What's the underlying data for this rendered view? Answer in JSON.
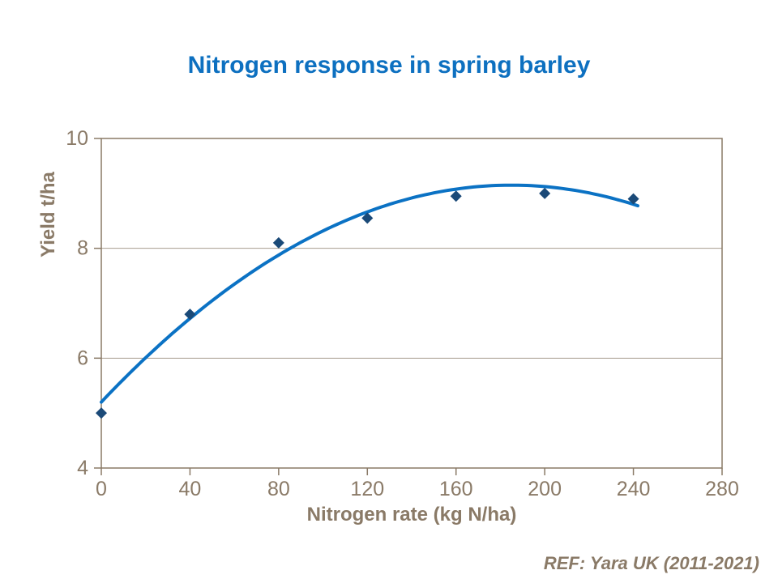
{
  "title": {
    "text": "Nitrogen response in spring barley"
  },
  "footer": {
    "ref_text": "REF: Yara UK (2011-2021)"
  },
  "chart_data": {
    "type": "scatter",
    "title": "Nitrogen response in spring barley",
    "xlabel": "Nitrogen rate (kg N/ha)",
    "ylabel": "Yield t/ha",
    "xlim": [
      0,
      280
    ],
    "ylim": [
      4,
      10
    ],
    "x_ticks": [
      0,
      40,
      80,
      120,
      160,
      200,
      240,
      280
    ],
    "y_ticks": [
      4,
      6,
      8,
      10
    ],
    "grid": "horizontal gridlines at interior y ticks; full plot-area frame",
    "legend": "none",
    "points": {
      "x": [
        0,
        40,
        80,
        120,
        160,
        200,
        240
      ],
      "y": [
        5.0,
        6.8,
        8.1,
        8.55,
        8.95,
        9.0,
        8.9
      ]
    },
    "trendline": {
      "shape": "quadratic",
      "y_at_x_start": 5.2,
      "peak_x": 185,
      "peak_y": 9.15,
      "x_start": 0,
      "x_end": 242
    },
    "colors": {
      "title": "#0d70c0",
      "line": "#0b72c4",
      "marker": "#1b4a78",
      "axis": "#8a7a67",
      "gridline": "#a79d8f",
      "tick_text": "#8a7a67"
    }
  }
}
